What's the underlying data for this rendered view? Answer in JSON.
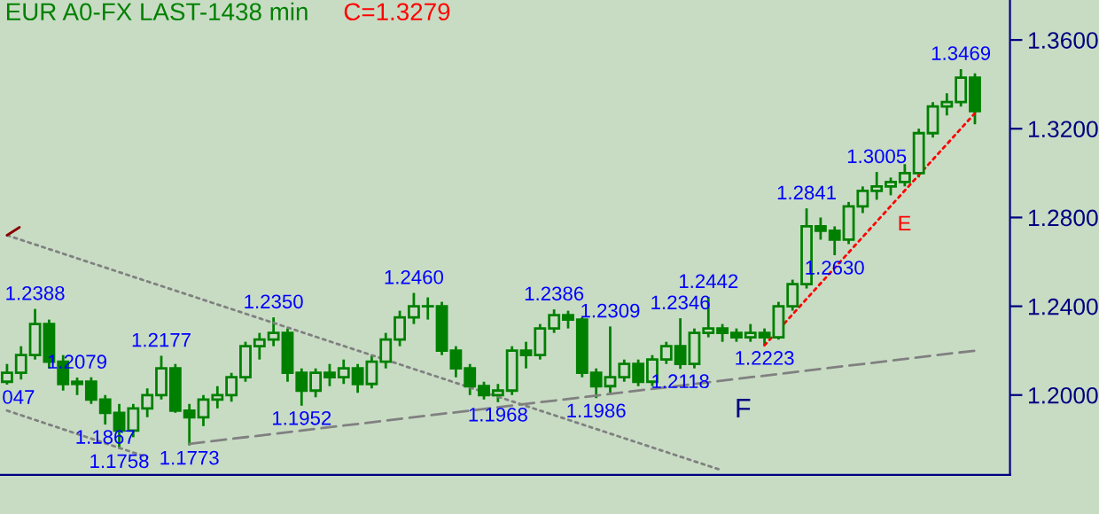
{
  "chart_data": {
    "type": "candlestick",
    "title": "EUR A0-FX LAST-1438 min",
    "subtitle": "C=1.3279",
    "color": "#008000",
    "categories": [
      null,
      null,
      null,
      null,
      null,
      null,
      null,
      null,
      null,
      null,
      null,
      null,
      null,
      null,
      null,
      null,
      null,
      null,
      null,
      null,
      null,
      null,
      null,
      null,
      null,
      null,
      null,
      null,
      null,
      null,
      null,
      null,
      null,
      null,
      null,
      null,
      null,
      null,
      null,
      null,
      null,
      null,
      null,
      null,
      null,
      null,
      null,
      null,
      null,
      null,
      null,
      null,
      null,
      null,
      null,
      null,
      null,
      null,
      null,
      null,
      null,
      null,
      null,
      null,
      null,
      null,
      null,
      null,
      null,
      null
    ],
    "ohlc": [
      [
        1.206,
        1.214,
        1.2047,
        1.21
      ],
      [
        1.21,
        1.222,
        1.207,
        1.218
      ],
      [
        1.218,
        1.2388,
        1.216,
        1.232
      ],
      [
        1.232,
        1.234,
        1.212,
        1.215
      ],
      [
        1.215,
        1.218,
        1.202,
        1.205
      ],
      [
        1.205,
        1.2079,
        1.2,
        1.206
      ],
      [
        1.206,
        1.208,
        1.196,
        1.198
      ],
      [
        1.198,
        1.2,
        1.1867,
        1.192
      ],
      [
        1.192,
        1.196,
        1.1758,
        1.184
      ],
      [
        1.184,
        1.196,
        1.181,
        1.194
      ],
      [
        1.194,
        1.203,
        1.19,
        1.2
      ],
      [
        1.2,
        1.2177,
        1.198,
        1.212
      ],
      [
        1.212,
        1.214,
        1.192,
        1.193
      ],
      [
        1.193,
        1.196,
        1.1773,
        1.19
      ],
      [
        1.19,
        1.2,
        1.186,
        1.198
      ],
      [
        1.198,
        1.204,
        1.194,
        1.2
      ],
      [
        1.2,
        1.21,
        1.197,
        1.208
      ],
      [
        1.208,
        1.224,
        1.206,
        1.222
      ],
      [
        1.222,
        1.228,
        1.216,
        1.225
      ],
      [
        1.225,
        1.235,
        1.222,
        1.228
      ],
      [
        1.228,
        1.23,
        1.206,
        1.21
      ],
      [
        1.21,
        1.212,
        1.1952,
        1.202
      ],
      [
        1.202,
        1.212,
        1.199,
        1.21
      ],
      [
        1.21,
        1.214,
        1.204,
        1.208
      ],
      [
        1.208,
        1.216,
        1.205,
        1.212
      ],
      [
        1.212,
        1.214,
        1.201,
        1.205
      ],
      [
        1.205,
        1.218,
        1.203,
        1.215
      ],
      [
        1.215,
        1.228,
        1.212,
        1.225
      ],
      [
        1.225,
        1.238,
        1.222,
        1.235
      ],
      [
        1.235,
        1.246,
        1.232,
        1.24
      ],
      [
        1.24,
        1.244,
        1.234,
        1.24
      ],
      [
        1.24,
        1.242,
        1.218,
        1.22
      ],
      [
        1.22,
        1.222,
        1.208,
        1.212
      ],
      [
        1.212,
        1.214,
        1.2,
        1.204
      ],
      [
        1.204,
        1.206,
        1.198,
        1.2
      ],
      [
        1.2,
        1.205,
        1.1968,
        1.202
      ],
      [
        1.202,
        1.222,
        1.2,
        1.22
      ],
      [
        1.22,
        1.224,
        1.212,
        1.218
      ],
      [
        1.218,
        1.232,
        1.216,
        1.23
      ],
      [
        1.23,
        1.2386,
        1.228,
        1.236
      ],
      [
        1.236,
        1.238,
        1.23,
        1.234
      ],
      [
        1.234,
        1.235,
        1.208,
        1.21
      ],
      [
        1.21,
        1.212,
        1.1986,
        1.204
      ],
      [
        1.204,
        1.2309,
        1.201,
        1.208
      ],
      [
        1.208,
        1.216,
        1.206,
        1.214
      ],
      [
        1.214,
        1.216,
        1.204,
        1.206
      ],
      [
        1.206,
        1.218,
        1.204,
        1.216
      ],
      [
        1.216,
        1.224,
        1.214,
        1.222
      ],
      [
        1.222,
        1.2346,
        1.2118,
        1.214
      ],
      [
        1.214,
        1.23,
        1.212,
        1.228
      ],
      [
        1.228,
        1.2442,
        1.226,
        1.23
      ],
      [
        1.23,
        1.232,
        1.224,
        1.228
      ],
      [
        1.228,
        1.23,
        1.224,
        1.226
      ],
      [
        1.226,
        1.232,
        1.224,
        1.228
      ],
      [
        1.228,
        1.23,
        1.2223,
        1.226
      ],
      [
        1.226,
        1.242,
        1.225,
        1.24
      ],
      [
        1.24,
        1.252,
        1.238,
        1.25
      ],
      [
        1.25,
        1.2841,
        1.248,
        1.276
      ],
      [
        1.276,
        1.28,
        1.27,
        1.274
      ],
      [
        1.274,
        1.276,
        1.263,
        1.27
      ],
      [
        1.27,
        1.287,
        1.268,
        1.285
      ],
      [
        1.285,
        1.294,
        1.282,
        1.292
      ],
      [
        1.292,
        1.3005,
        1.288,
        1.294
      ],
      [
        1.294,
        1.298,
        1.29,
        1.296
      ],
      [
        1.296,
        1.304,
        1.294,
        1.3
      ],
      [
        1.3,
        1.32,
        1.298,
        1.318
      ],
      [
        1.318,
        1.332,
        1.316,
        1.33
      ],
      [
        1.33,
        1.336,
        1.326,
        1.332
      ],
      [
        1.332,
        1.3469,
        1.33,
        1.343
      ],
      [
        1.343,
        1.345,
        1.322,
        1.3279
      ]
    ],
    "series": [
      {
        "type": "line",
        "color": "#808080",
        "line_style": "dotted",
        "values": [
          1.272,
          null,
          null,
          null,
          null,
          null,
          null,
          null,
          null,
          null,
          null,
          null,
          null,
          null,
          null,
          null,
          null,
          null,
          null,
          null,
          null,
          null,
          null,
          null,
          null,
          null,
          null,
          null,
          null,
          null,
          null,
          null,
          null,
          null,
          null,
          null,
          null,
          null,
          null,
          null,
          null,
          null,
          null,
          null,
          null,
          null,
          null,
          null,
          null,
          null,
          null,
          1.166,
          null,
          null,
          null,
          null,
          null,
          null,
          null,
          null,
          null,
          null,
          null,
          null,
          null,
          null,
          null,
          null,
          null,
          null
        ]
      },
      {
        "type": "line",
        "color": "#808080",
        "line_style": "dotted",
        "values": [
          1.193,
          null,
          null,
          null,
          null,
          null,
          null,
          null,
          null,
          null,
          1.172,
          null,
          null,
          null,
          null,
          null,
          null,
          null,
          null,
          null,
          null,
          null,
          null,
          null,
          null,
          null,
          null,
          null,
          null,
          null,
          null,
          null,
          null,
          null,
          null,
          null,
          null,
          null,
          null,
          null,
          null,
          null,
          null,
          null,
          null,
          null,
          null,
          null,
          null,
          null,
          null,
          null,
          null,
          null,
          null,
          null,
          null,
          null,
          null,
          null,
          null,
          null,
          null,
          null,
          null,
          null,
          null,
          null,
          null,
          null
        ]
      },
      {
        "type": "line",
        "color": "#808080",
        "line_style": "dashed",
        "values": [
          null,
          null,
          null,
          null,
          null,
          null,
          null,
          null,
          null,
          null,
          null,
          null,
          null,
          1.178,
          null,
          null,
          null,
          null,
          null,
          null,
          null,
          null,
          null,
          null,
          null,
          null,
          null,
          null,
          null,
          null,
          null,
          null,
          null,
          null,
          null,
          null,
          null,
          null,
          null,
          null,
          null,
          null,
          null,
          null,
          null,
          null,
          null,
          null,
          null,
          null,
          null,
          null,
          null,
          null,
          null,
          null,
          null,
          null,
          null,
          null,
          null,
          null,
          null,
          null,
          null,
          null,
          null,
          null,
          null,
          1.22
        ]
      },
      {
        "type": "line",
        "color": "#ff0000",
        "line_style": "dotted",
        "values": [
          null,
          null,
          null,
          null,
          null,
          null,
          null,
          null,
          null,
          null,
          null,
          null,
          null,
          null,
          null,
          null,
          null,
          null,
          null,
          null,
          null,
          null,
          null,
          null,
          null,
          null,
          null,
          null,
          null,
          null,
          null,
          null,
          null,
          null,
          null,
          null,
          null,
          null,
          null,
          null,
          null,
          null,
          null,
          null,
          null,
          null,
          null,
          null,
          null,
          null,
          null,
          null,
          null,
          null,
          1.2224,
          null,
          null,
          null,
          null,
          null,
          null,
          null,
          null,
          null,
          null,
          null,
          null,
          null,
          null,
          1.327
        ]
      },
      {
        "type": "line",
        "color": "#8b0000",
        "line_style": "dashed",
        "values": [
          1.272,
          1.276,
          null,
          null,
          null,
          null,
          null,
          null,
          null,
          null,
          null,
          null,
          null,
          null,
          null,
          null,
          null,
          null,
          null,
          null,
          null,
          null,
          null,
          null,
          null,
          null,
          null,
          null,
          null,
          null,
          null,
          null,
          null,
          null,
          null,
          null,
          null,
          null,
          null,
          null,
          null,
          null,
          null,
          null,
          null,
          null,
          null,
          null,
          null,
          null,
          null,
          null,
          null,
          null,
          null,
          null,
          null,
          null,
          null,
          null,
          null,
          null,
          null,
          null,
          null,
          null,
          null,
          null,
          null,
          null
        ]
      }
    ],
    "ylim": [
      1.164,
      1.378
    ],
    "yticks": [
      {
        "value": 1.2,
        "label": "1.2000"
      },
      {
        "value": 1.24,
        "label": "1.2400"
      },
      {
        "value": 1.28,
        "label": "1.2800"
      },
      {
        "value": 1.32,
        "label": "1.3200"
      },
      {
        "value": 1.36,
        "label": "1.3600"
      }
    ],
    "tick_labels": "y",
    "grid": false,
    "annotations": [
      {
        "text": "047",
        "y": 1.2047
      },
      {
        "text": "1.2388",
        "y": 1.2388
      },
      {
        "text": "1.2079",
        "y": 1.2079
      },
      {
        "text": "1.1867",
        "y": 1.1867
      },
      {
        "text": "1.1758",
        "y": 1.1758
      },
      {
        "text": "1.2177",
        "y": 1.2177
      },
      {
        "text": "1.1773",
        "y": 1.1773
      },
      {
        "text": "1.2350",
        "y": 1.235
      },
      {
        "text": "1.1952",
        "y": 1.1952
      },
      {
        "text": "1.2460",
        "y": 1.246
      },
      {
        "text": "1.1968",
        "y": 1.1968
      },
      {
        "text": "1.2386",
        "y": 1.2386
      },
      {
        "text": "1.1986",
        "y": 1.1986
      },
      {
        "text": "1.2309",
        "y": 1.2309
      },
      {
        "text": "1.2346",
        "y": 1.2346
      },
      {
        "text": "1.2118",
        "y": 1.2118
      },
      {
        "text": "1.2442",
        "y": 1.2442
      },
      {
        "text": "1.2223",
        "y": 1.2223
      },
      {
        "text": "1.2841",
        "y": 1.2841
      },
      {
        "text": "1.2630",
        "y": 1.263
      },
      {
        "text": "1.3005",
        "y": 1.3005
      },
      {
        "text": "1.3469",
        "y": 1.3469
      },
      "E",
      {
        "text": "F",
        "y": 1.2076
      }
    ]
  }
}
